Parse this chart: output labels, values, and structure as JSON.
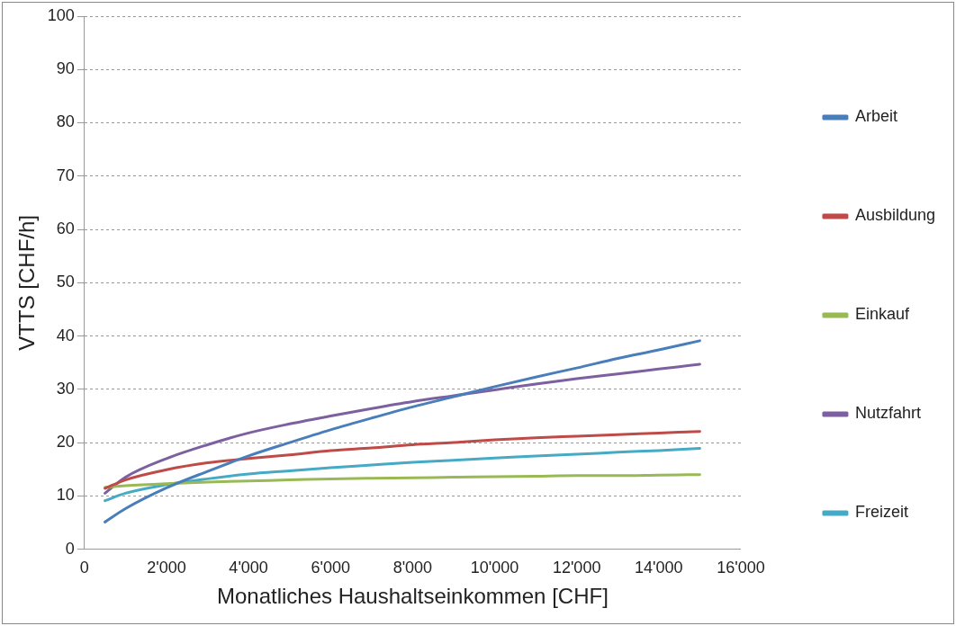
{
  "chart_data": {
    "type": "line",
    "xlabel": "Monatliches Haushaltseinkommen [CHF]",
    "ylabel": "VTTS [CHF/h]",
    "x": [
      500,
      1000,
      2000,
      3000,
      4000,
      5000,
      6000,
      7000,
      8000,
      9000,
      10000,
      11000,
      12000,
      13000,
      14000,
      15000
    ],
    "series": [
      {
        "name": "Arbeit",
        "color": "#4a7ebb",
        "values": [
          5.1,
          7.6,
          11.5,
          14.6,
          17.5,
          20.0,
          22.4,
          24.6,
          26.7,
          28.6,
          30.5,
          32.3,
          34.0,
          35.8,
          37.4,
          39.1
        ]
      },
      {
        "name": "Ausbildung",
        "color": "#be4b48",
        "values": [
          11.4,
          13.0,
          14.9,
          16.2,
          17.0,
          17.7,
          18.5,
          19.0,
          19.6,
          20.0,
          20.5,
          20.9,
          21.2,
          21.5,
          21.8,
          22.1
        ]
      },
      {
        "name": "Einkauf",
        "color": "#98b954",
        "values": [
          11.6,
          11.9,
          12.3,
          12.6,
          12.8,
          13.0,
          13.2,
          13.3,
          13.4,
          13.5,
          13.6,
          13.7,
          13.8,
          13.8,
          13.9,
          14.0
        ]
      },
      {
        "name": "Nutzfahrt",
        "color": "#7d60a0",
        "values": [
          10.5,
          13.5,
          17.0,
          19.6,
          21.8,
          23.5,
          25.0,
          26.4,
          27.7,
          28.8,
          29.9,
          31.0,
          32.0,
          32.9,
          33.8,
          34.7
        ]
      },
      {
        "name": "Freizeit",
        "color": "#46aac5",
        "values": [
          9.1,
          10.5,
          12.1,
          13.2,
          14.1,
          14.7,
          15.3,
          15.8,
          16.3,
          16.7,
          17.1,
          17.5,
          17.8,
          18.2,
          18.5,
          18.9
        ]
      }
    ],
    "xlim": [
      0,
      16000
    ],
    "xticks": [
      {
        "value": 0,
        "label": "0"
      },
      {
        "value": 2000,
        "label": "2'000"
      },
      {
        "value": 4000,
        "label": "4'000"
      },
      {
        "value": 6000,
        "label": "6'000"
      },
      {
        "value": 8000,
        "label": "8'000"
      },
      {
        "value": 10000,
        "label": "10'000"
      },
      {
        "value": 12000,
        "label": "12'000"
      },
      {
        "value": 14000,
        "label": "14'000"
      },
      {
        "value": 16000,
        "label": "16'000"
      }
    ],
    "ylim": [
      0,
      100
    ],
    "yticks": [
      0,
      10,
      20,
      30,
      40,
      50,
      60,
      70,
      80,
      90,
      100
    ],
    "grid": "y",
    "legend": "right",
    "marker": "none",
    "line_style": "solid"
  }
}
